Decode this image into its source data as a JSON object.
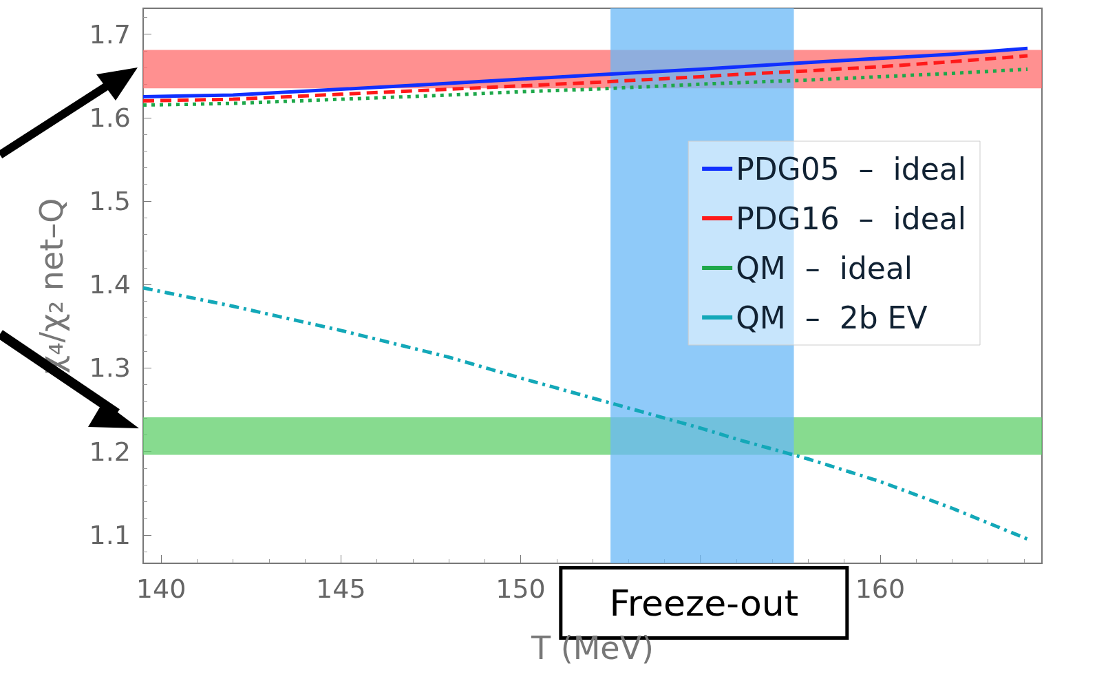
{
  "chart_data": {
    "type": "line",
    "xlabel": "T (MeV)",
    "ylabel": "χ₄/χ₂ net–Q",
    "x": [
      139.5,
      142,
      145,
      148,
      150,
      152,
      155,
      156.15,
      158,
      160,
      162,
      164.1
    ],
    "series": [
      {
        "name": "PDG05  –  ideal",
        "color": "#1030ff",
        "line_style": "solid",
        "values": [
          1.625,
          1.627,
          1.634,
          1.641,
          1.646,
          1.651,
          1.658,
          1.661,
          1.666,
          1.671,
          1.676,
          1.683
        ]
      },
      {
        "name": "PDG16  –  ideal",
        "color": "#ff1a1a",
        "line_style": "dashed",
        "values": [
          1.62,
          1.622,
          1.628,
          1.634,
          1.638,
          1.642,
          1.649,
          1.652,
          1.656,
          1.661,
          1.667,
          1.674
        ]
      },
      {
        "name": "QM  –  ideal",
        "color": "#1ea84a",
        "line_style": "dotted",
        "values": [
          1.615,
          1.617,
          1.622,
          1.627,
          1.631,
          1.634,
          1.64,
          1.642,
          1.645,
          1.649,
          1.653,
          1.658
        ]
      },
      {
        "name": "QM  –  2b EV",
        "color": "#13a8b8",
        "line_style": "dashdot",
        "values": [
          1.396,
          1.374,
          1.345,
          1.313,
          1.288,
          1.264,
          1.228,
          1.213,
          1.191,
          1.164,
          1.132,
          1.095
        ]
      }
    ],
    "xlim": [
      139.5,
      164.5
    ],
    "xticks": [
      140,
      145,
      150,
      {
        "value": 155,
        "label": null
      },
      160
    ],
    "ylim": [
      1.066,
      1.731
    ],
    "yticks": [
      1.1,
      1.2,
      1.3,
      1.4,
      1.5,
      1.6,
      1.7
    ],
    "bands": [
      {
        "axis": "y",
        "from": 1.635,
        "to": 1.681,
        "color": "#ff6b6b"
      },
      {
        "axis": "y",
        "from": 1.196,
        "to": 1.241,
        "color": "#5fcf6a"
      },
      {
        "axis": "x",
        "from": 152.5,
        "to": 157.6,
        "color": "#6ab8f7",
        "label": "Freeze-out"
      }
    ],
    "grid": false,
    "legend": "right"
  }
}
